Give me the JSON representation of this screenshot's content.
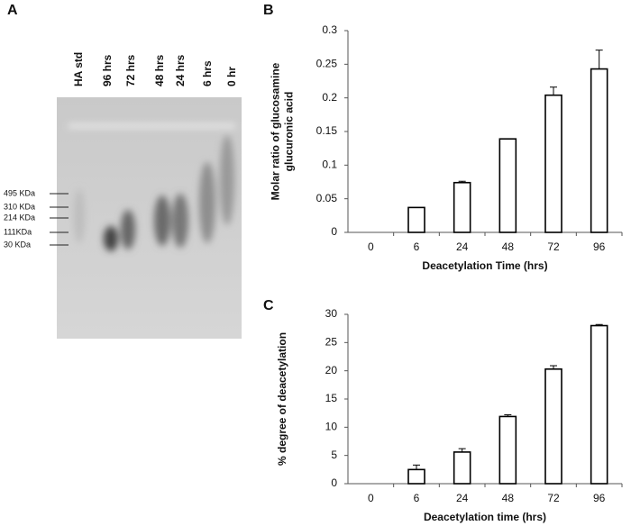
{
  "panels": [
    "A",
    "B",
    "C"
  ],
  "gel": {
    "lanes": [
      "HA std",
      "96 hrs",
      "72 hrs",
      "48 hrs",
      "24 hrs",
      "6 hrs",
      "0 hr"
    ],
    "markers": [
      "495 KDa",
      "310 KDa",
      "214 KDa",
      "111KDa",
      "30 KDa"
    ]
  },
  "chart_data": [
    {
      "type": "bar",
      "y_label": [
        "Molar ratio of glucosamine",
        "glucuronic  acid"
      ],
      "x_label": "Deacetylation Time (hrs)",
      "categories": [
        "0",
        "6",
        "24",
        "48",
        "72",
        "96"
      ],
      "values": [
        0,
        0.037,
        0.074,
        0.139,
        0.204,
        0.243
      ],
      "errors": [
        0,
        0,
        0.002,
        0,
        0.012,
        0.028
      ],
      "color": "#ffffff",
      "ylim": [
        0,
        0.3
      ],
      "yticks": [
        0,
        0.05,
        0.1,
        0.15,
        0.2,
        0.25,
        0.3
      ],
      "grid": false
    },
    {
      "type": "bar",
      "y_label": [
        "% degree of deacetylation"
      ],
      "x_label": "Deacetylation time  (hrs)",
      "categories": [
        "0",
        "6",
        "24",
        "48",
        "72",
        "96"
      ],
      "values": [
        0,
        2.5,
        5.6,
        11.9,
        20.3,
        28
      ],
      "errors": [
        0,
        0.8,
        0.6,
        0.3,
        0.6,
        0.2
      ],
      "color": "#ffffff",
      "ylim": [
        0,
        30
      ],
      "yticks": [
        0,
        5,
        10,
        15,
        20,
        25,
        30
      ],
      "grid": false
    }
  ]
}
